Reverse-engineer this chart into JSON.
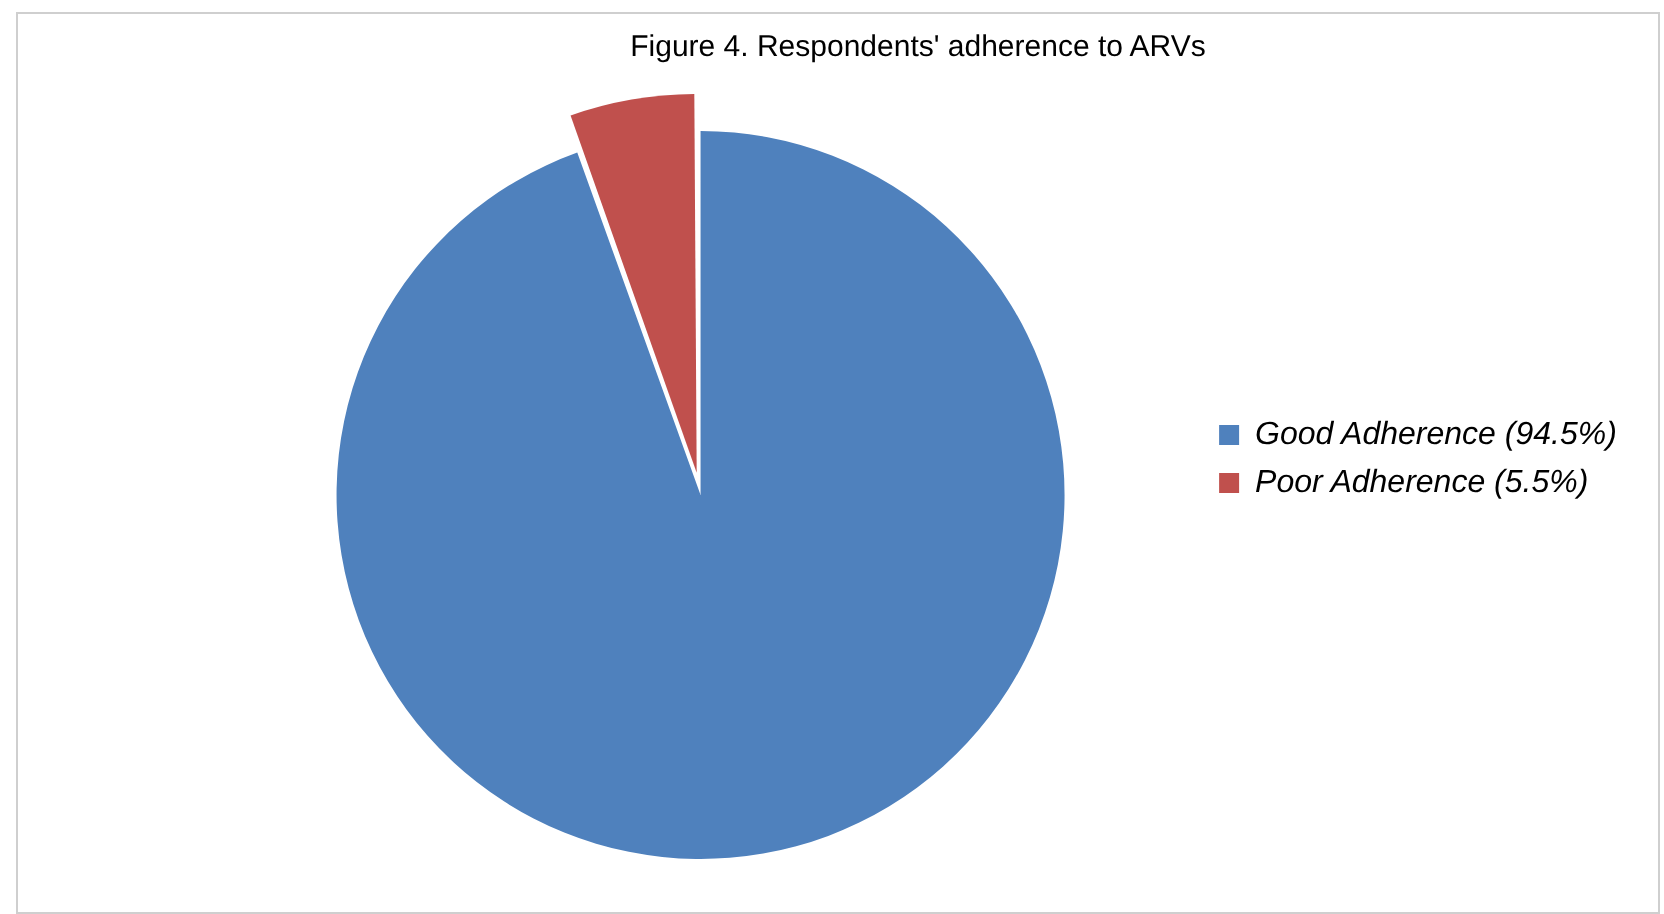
{
  "chart_data": {
    "type": "pie",
    "title": "Figure 4. Respondents' adherence to ARVs",
    "categories": [
      "Good Adherence (94.5%)",
      "Poor Adherence (5.5%)"
    ],
    "values": [
      94.5,
      5.5
    ],
    "colors": [
      "#4f81bd",
      "#c0504d"
    ],
    "legend": "right"
  }
}
